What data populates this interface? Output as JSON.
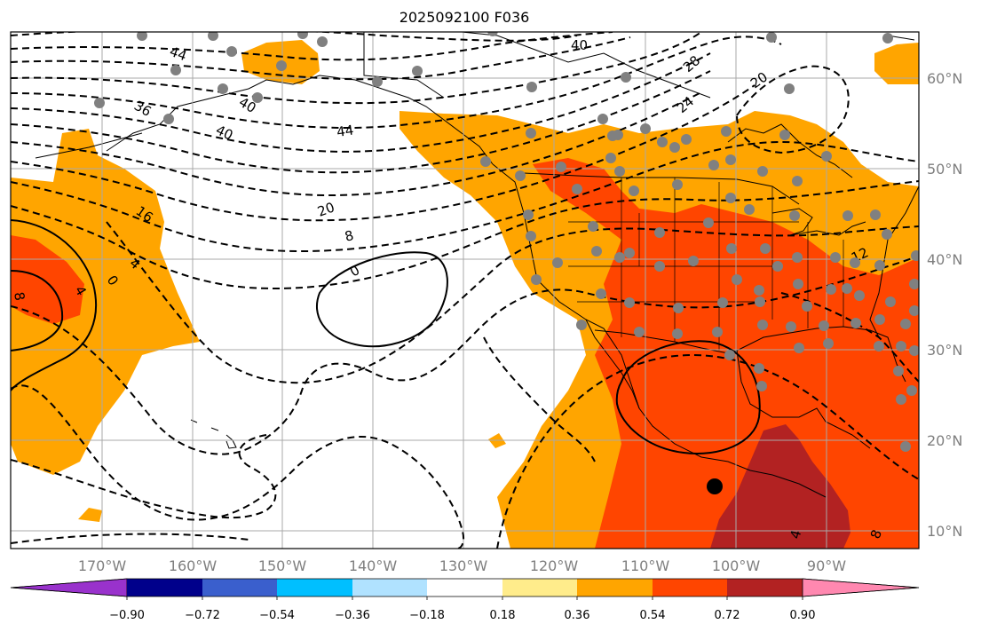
{
  "title": "2025092100 F036",
  "x_ticks": [
    "170°W",
    "160°W",
    "150°W",
    "140°W",
    "130°W",
    "120°W",
    "110°W",
    "100°W",
    "90°W"
  ],
  "y_ticks": [
    "60°N",
    "50°N",
    "40°N",
    "30°N",
    "20°N",
    "10°N"
  ],
  "colorbar": {
    "ticks": [
      "−0.90",
      "−0.72",
      "−0.54",
      "−0.36",
      "−0.18",
      "0.18",
      "0.36",
      "0.54",
      "0.72",
      "0.90"
    ],
    "colors": [
      "#9932cc",
      "#00008b",
      "#3a5fcd",
      "#00bfff",
      "#b0e2ff",
      "#ffffff",
      "#ffec8b",
      "#ffa500",
      "#ff4500",
      "#b22222",
      "#ff88b0"
    ]
  },
  "contour_labels": [
    "44",
    "40",
    "36",
    "40",
    "44",
    "40",
    "28",
    "24",
    "20",
    "16",
    "20",
    "8",
    "4",
    "0",
    "0",
    "4",
    "8",
    "12",
    "4",
    "8"
  ],
  "colors": {
    "orange": "#ffa500",
    "red_orange": "#ff4500",
    "dark_red": "#b22222",
    "grid": "#a9a9a9",
    "station_dot": "#808080"
  }
}
